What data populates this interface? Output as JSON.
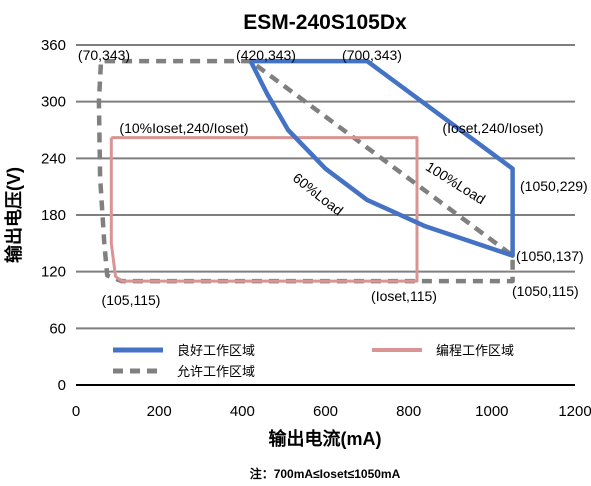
{
  "chart_data": {
    "type": "line",
    "title": "ESM-240S105Dx",
    "xlabel": "输出电流(mA)",
    "ylabel": "输出电压(V)",
    "note": "注：700mA≤Ioset≤1050mA",
    "xlim": [
      0,
      1200
    ],
    "ylim": [
      0,
      360
    ],
    "x_ticks": [
      "0",
      "200",
      "400",
      "600",
      "800",
      "1000",
      "1200"
    ],
    "y_ticks": [
      "0",
      "60",
      "120",
      "180",
      "240",
      "300",
      "360"
    ],
    "grid": "horizontal",
    "legend_position": "bottom",
    "colors": {
      "good": "#4472c4",
      "program": "#d99594",
      "allow": "#808080"
    },
    "series": [
      {
        "name": "良好工作区域",
        "style": "solid",
        "points": [
          [
            420,
            343
          ],
          [
            700,
            343
          ],
          [
            1050,
            229
          ],
          [
            1050,
            137
          ],
          [
            840,
            168
          ],
          [
            700,
            196
          ],
          [
            600,
            229
          ],
          [
            510,
            270
          ],
          [
            460,
            308
          ],
          [
            420,
            343
          ]
        ]
      },
      {
        "name": "编程工作区域",
        "style": "solid",
        "points": [
          [
            85,
            262
          ],
          [
            820,
            262
          ],
          [
            820,
            110
          ],
          [
            110,
            110
          ],
          [
            95,
            115
          ],
          [
            85,
            150
          ],
          [
            85,
            262
          ]
        ]
      },
      {
        "name": "允许工作区域",
        "style": "dashed",
        "points": [
          [
            70,
            343
          ],
          [
            420,
            343
          ],
          [
            420,
            343
          ],
          [
            1050,
            137
          ],
          [
            1050,
            115
          ],
          [
            1050,
            110
          ],
          [
            110,
            110
          ],
          [
            75,
            116
          ],
          [
            68,
            150
          ],
          [
            58,
            220
          ],
          [
            55,
            300
          ],
          [
            60,
            343
          ],
          [
            70,
            343
          ]
        ]
      }
    ],
    "curve_labels": [
      "60%Load",
      "100%Load"
    ],
    "annotations": [
      "(70,343)",
      "(420,343)",
      "(700,343)",
      "(10%Ioset,240/Ioset)",
      "(Ioset,240/Ioset)",
      "(1050,229)",
      "(1050,137)",
      "(1050,115)",
      "(105,115)",
      "(Ioset,115)"
    ]
  }
}
